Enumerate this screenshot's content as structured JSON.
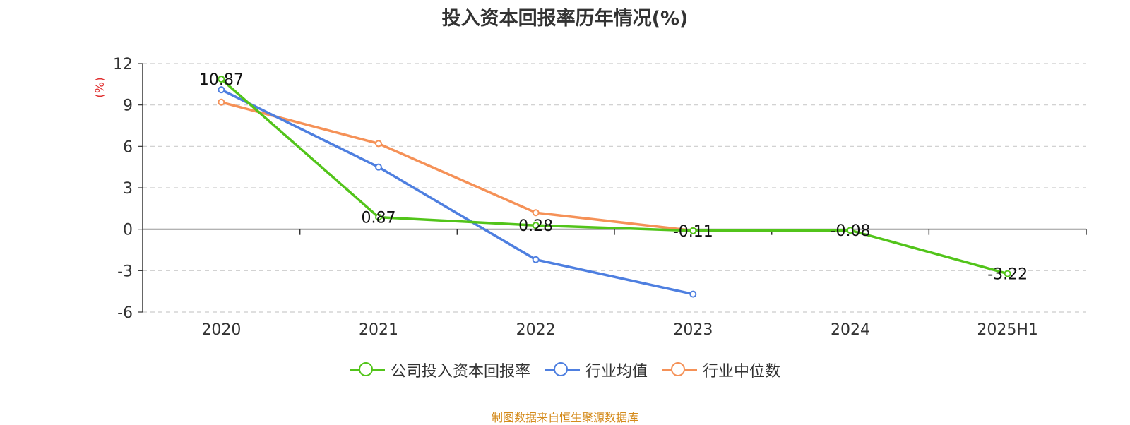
{
  "chart_data": {
    "type": "line",
    "title": "投入资本回报率历年情况(%)",
    "ylabel": "(%)",
    "categories": [
      "2020",
      "2021",
      "2022",
      "2023",
      "2024",
      "2025H1"
    ],
    "y_ticks": [
      "12",
      "9",
      "6",
      "3",
      "0",
      "-3",
      "-6"
    ],
    "ylim": [
      -6,
      12
    ],
    "grid": true,
    "legend_position": "bottom",
    "series": [
      {
        "name": "公司投入资本回报率",
        "color": "#52c41a",
        "values": [
          10.87,
          0.87,
          0.28,
          -0.11,
          -0.08,
          -3.22
        ],
        "labels": [
          "10.87",
          "0.87",
          "0.28",
          "-0.11",
          "-0.08",
          "-3.22"
        ]
      },
      {
        "name": "行业均值",
        "color": "#4e7fe0",
        "values": [
          10.1,
          4.5,
          -2.2,
          -4.7,
          null,
          null
        ]
      },
      {
        "name": "行业中位数",
        "color": "#f59157",
        "values": [
          9.2,
          6.2,
          1.2,
          -0.1,
          null,
          null
        ]
      }
    ]
  },
  "source": "制图数据来自恒生聚源数据库"
}
